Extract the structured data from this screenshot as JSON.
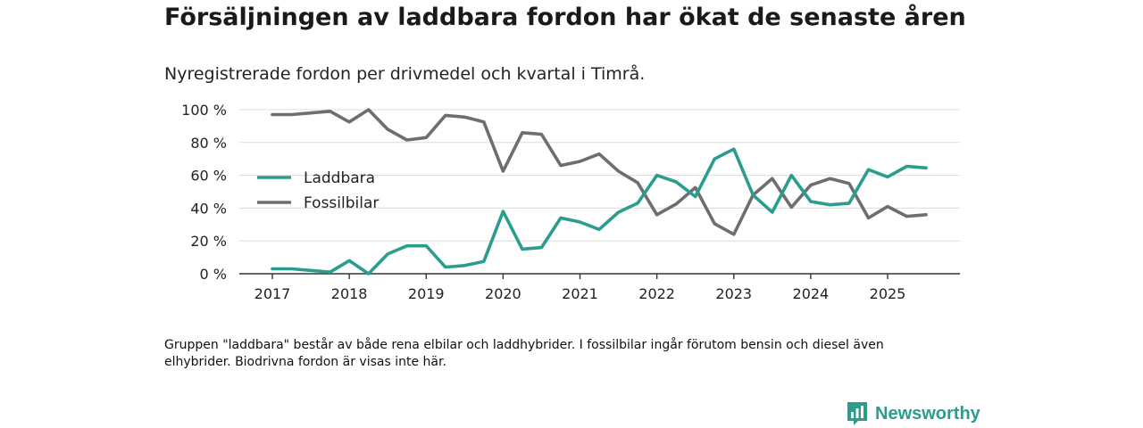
{
  "chart_data": {
    "type": "line",
    "title": "Försäljningen av laddbara fordon har ökat de senaste åren",
    "subtitle": "Nyregistrerade fordon per drivmedel och kvartal i Timrå.",
    "xlabel": "",
    "ylabel": "",
    "x_ticks": [
      "2017",
      "2018",
      "2019",
      "2020",
      "2021",
      "2022",
      "2023",
      "2024",
      "2025"
    ],
    "y_ticks": [
      "100 %",
      "80 %",
      "60 %",
      "40 %",
      "20 %",
      "0 %"
    ],
    "ylim": [
      0,
      100
    ],
    "xlim": [
      2016.75,
      2025.95
    ],
    "x": [
      2017.0,
      2017.25,
      2017.5,
      2017.75,
      2018.0,
      2018.25,
      2018.5,
      2018.75,
      2019.0,
      2019.25,
      2019.5,
      2019.75,
      2020.0,
      2020.25,
      2020.5,
      2020.75,
      2021.0,
      2021.25,
      2021.5,
      2021.75,
      2022.0,
      2022.25,
      2022.5,
      2022.75,
      2023.0,
      2023.25,
      2023.5,
      2023.75,
      2024.0,
      2024.25,
      2024.5,
      2024.75,
      2025.0,
      2025.25,
      2025.5
    ],
    "series": [
      {
        "name": "Laddbara",
        "color": "#2a9d8f",
        "values": [
          3,
          3,
          2,
          1,
          8,
          0,
          12,
          17,
          17,
          4,
          5,
          7.5,
          38,
          15,
          16,
          34,
          31.5,
          27,
          37.5,
          43,
          60,
          56,
          47,
          70,
          76,
          48,
          37.5,
          60,
          44,
          42,
          43,
          63.5,
          59,
          65.5,
          64.5
        ]
      },
      {
        "name": "Fossilbilar",
        "color": "#6e6d72",
        "values": [
          97,
          97,
          98,
          99,
          92.5,
          100,
          88,
          81.5,
          83,
          96.5,
          95.5,
          92.5,
          62.5,
          86,
          85,
          66,
          68.5,
          73,
          62.5,
          55.5,
          36,
          42.5,
          52.5,
          30.5,
          24,
          48,
          58,
          40.5,
          54,
          58,
          55,
          34,
          41,
          35,
          36
        ]
      }
    ],
    "legend": "top-left"
  },
  "footnote": "Gruppen \"laddbara\" består av både rena elbilar och laddhybrider. I fossilbilar ingår förutom bensin och diesel även elhybrider. Biodrivna fordon är visas inte här.",
  "brand": {
    "name": "Newsworthy",
    "color": "#2a9d8f"
  }
}
